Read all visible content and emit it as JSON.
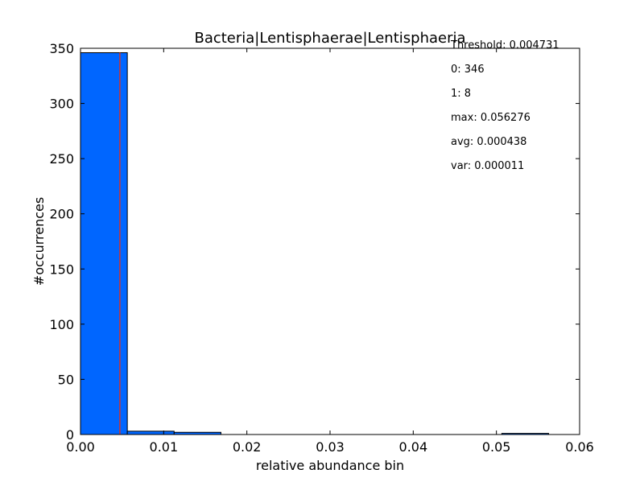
{
  "chart_data": {
    "type": "bar",
    "title": "Bacteria|Lentisphaerae|Lentisphaeria",
    "xlabel": "relative abundance bin",
    "ylabel": "#occurrences",
    "xlim": [
      0.0,
      0.06
    ],
    "ylim": [
      0,
      350
    ],
    "x_ticks": [
      "0.00",
      "0.01",
      "0.02",
      "0.03",
      "0.04",
      "0.05",
      "0.06"
    ],
    "y_ticks": [
      "0",
      "50",
      "100",
      "150",
      "200",
      "250",
      "300",
      "350"
    ],
    "bins": [
      {
        "x0": 0.0,
        "x1": 0.0056276,
        "count": 346
      },
      {
        "x0": 0.0056276,
        "x1": 0.0112552,
        "count": 3
      },
      {
        "x0": 0.0112552,
        "x1": 0.0168828,
        "count": 2
      },
      {
        "x0": 0.0168828,
        "x1": 0.0225104,
        "count": 0
      },
      {
        "x0": 0.0225104,
        "x1": 0.028138,
        "count": 0
      },
      {
        "x0": 0.028138,
        "x1": 0.0337656,
        "count": 0
      },
      {
        "x0": 0.0337656,
        "x1": 0.0393932,
        "count": 0
      },
      {
        "x0": 0.0393932,
        "x1": 0.0450208,
        "count": 0
      },
      {
        "x0": 0.0450208,
        "x1": 0.0506484,
        "count": 0
      },
      {
        "x0": 0.0506484,
        "x1": 0.056276,
        "count": 1
      }
    ],
    "threshold": 0.004731,
    "bar_color": "#0066ff",
    "threshold_color": "#cc3333",
    "stats": [
      "Threshold: 0.004731",
      "0: 346",
      "1: 8",
      "max: 0.056276",
      "avg: 0.000438",
      "var: 0.000011"
    ]
  }
}
